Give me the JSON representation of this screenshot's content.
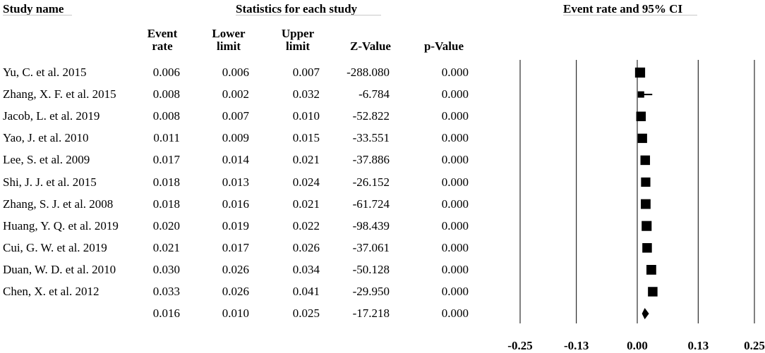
{
  "headers": {
    "study_name": "Study name",
    "statistics": "Statistics for each study",
    "event_rate_ci": "Event rate and 95% CI"
  },
  "columns": [
    [
      "Event",
      "rate"
    ],
    [
      "Lower",
      "limit"
    ],
    [
      "Upper",
      "limit"
    ],
    [
      "",
      "Z-Value"
    ],
    [
      "",
      "p-Value"
    ]
  ],
  "rows": [
    {
      "study": "Yu, C. et al. 2015",
      "rate": "0.006",
      "lower": "0.006",
      "upper": "0.007",
      "z": "-288.080",
      "p": "0.000"
    },
    {
      "study": "Zhang, X. F. et al. 2015",
      "rate": "0.008",
      "lower": "0.002",
      "upper": "0.032",
      "z": "-6.784",
      "p": "0.000"
    },
    {
      "study": "Jacob, L. et al. 2019",
      "rate": "0.008",
      "lower": "0.007",
      "upper": "0.010",
      "z": "-52.822",
      "p": "0.000"
    },
    {
      "study": "Yao, J. et al. 2010",
      "rate": "0.011",
      "lower": "0.009",
      "upper": "0.015",
      "z": "-33.551",
      "p": "0.000"
    },
    {
      "study": "Lee, S. et al. 2009",
      "rate": "0.017",
      "lower": "0.014",
      "upper": "0.021",
      "z": "-37.886",
      "p": "0.000"
    },
    {
      "study": "Shi, J. J. et al. 2015",
      "rate": "0.018",
      "lower": "0.013",
      "upper": "0.024",
      "z": "-26.152",
      "p": "0.000"
    },
    {
      "study": "Zhang, S. J. et al. 2008",
      "rate": "0.018",
      "lower": "0.016",
      "upper": "0.021",
      "z": "-61.724",
      "p": "0.000"
    },
    {
      "study": "Huang, Y. Q. et al. 2019",
      "rate": "0.020",
      "lower": "0.019",
      "upper": "0.022",
      "z": "-98.439",
      "p": "0.000"
    },
    {
      "study": "Cui, G. W. et al. 2019",
      "rate": "0.021",
      "lower": "0.017",
      "upper": "0.026",
      "z": "-37.061",
      "p": "0.000"
    },
    {
      "study": "Duan, W. D. et al. 2010",
      "rate": "0.030",
      "lower": "0.026",
      "upper": "0.034",
      "z": "-50.128",
      "p": "0.000"
    },
    {
      "study": "Chen, X. et al. 2012",
      "rate": "0.033",
      "lower": "0.026",
      "upper": "0.041",
      "z": "-29.950",
      "p": "0.000"
    }
  ],
  "pooled": {
    "study": "",
    "rate": "0.016",
    "lower": "0.010",
    "upper": "0.025",
    "z": "-17.218",
    "p": "0.000"
  },
  "chart_data": {
    "type": "forest",
    "x_ticks": [
      "-0.25",
      "-0.13",
      "0.00",
      "0.13",
      "0.25"
    ],
    "xlim": [
      -0.25,
      0.25
    ],
    "grid": true,
    "studies": [
      {
        "name": "Yu, C. et al. 2015",
        "estimate": 0.006,
        "lower": 0.006,
        "upper": 0.007,
        "weight": 0.95
      },
      {
        "name": "Zhang, X. F. et al. 2015",
        "estimate": 0.008,
        "lower": 0.002,
        "upper": 0.032,
        "weight": 0.6
      },
      {
        "name": "Jacob, L. et al. 2019",
        "estimate": 0.008,
        "lower": 0.007,
        "upper": 0.01,
        "weight": 0.9
      },
      {
        "name": "Yao, J. et al. 2010",
        "estimate": 0.011,
        "lower": 0.009,
        "upper": 0.015,
        "weight": 0.88
      },
      {
        "name": "Lee, S. et al. 2009",
        "estimate": 0.017,
        "lower": 0.014,
        "upper": 0.021,
        "weight": 0.9
      },
      {
        "name": "Shi, J. J. et al. 2015",
        "estimate": 0.018,
        "lower": 0.013,
        "upper": 0.024,
        "weight": 0.88
      },
      {
        "name": "Zhang, S. J. et al. 2008",
        "estimate": 0.018,
        "lower": 0.016,
        "upper": 0.021,
        "weight": 0.92
      },
      {
        "name": "Huang, Y. Q. et al. 2019",
        "estimate": 0.02,
        "lower": 0.019,
        "upper": 0.022,
        "weight": 0.94
      },
      {
        "name": "Cui, G. W. et al. 2019",
        "estimate": 0.021,
        "lower": 0.017,
        "upper": 0.026,
        "weight": 0.9
      },
      {
        "name": "Duan, W. D. et al. 2010",
        "estimate": 0.03,
        "lower": 0.026,
        "upper": 0.034,
        "weight": 0.92
      },
      {
        "name": "Chen, X. et al. 2012",
        "estimate": 0.033,
        "lower": 0.026,
        "upper": 0.041,
        "weight": 0.9
      }
    ],
    "pooled": {
      "estimate": 0.016,
      "lower": 0.01,
      "upper": 0.025
    }
  }
}
